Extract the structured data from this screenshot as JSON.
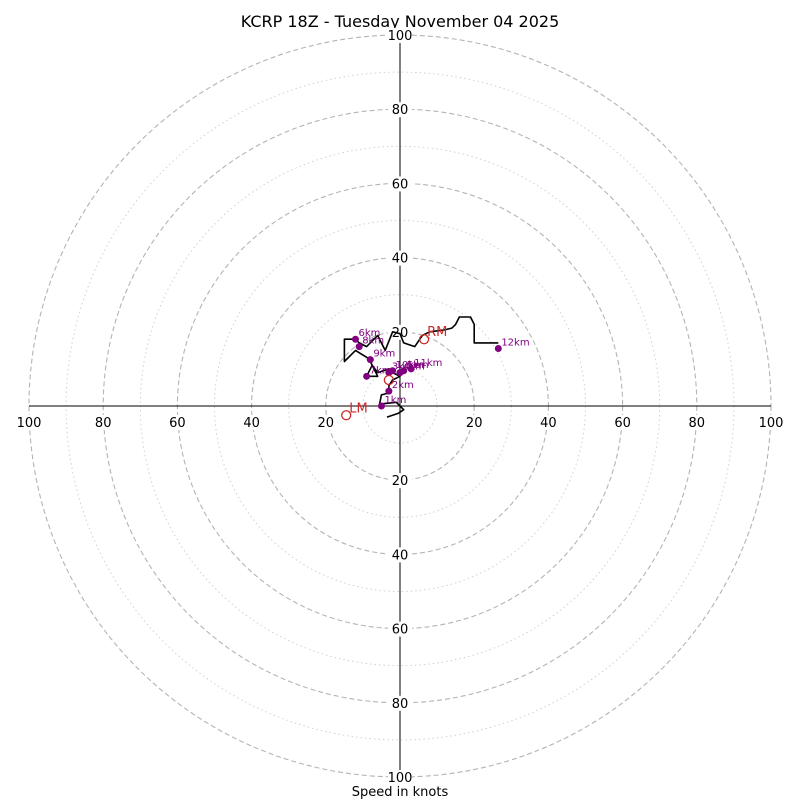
{
  "chart_data": {
    "type": "scatter",
    "subtype": "hodograph",
    "title": "KCRP 18Z - Tuesday November 04 2025",
    "xlabel": "Speed in knots",
    "range_max": 100,
    "major_rings": [
      20,
      40,
      60,
      80,
      100
    ],
    "minor_rings": [
      10,
      30,
      50,
      70,
      90
    ],
    "axis_ticks": [
      "100",
      "80",
      "60",
      "40",
      "20"
    ],
    "grid": true,
    "colors": {
      "trace": "#000000",
      "height_markers": "#800080",
      "storm_motion": "#cc2a2a",
      "grid": "#b4b4b4",
      "axis": "#000000"
    },
    "trace": [
      {
        "u": -3.5,
        "v": -3
      },
      {
        "u": -0.5,
        "v": -2
      },
      {
        "u": 1,
        "v": -1
      },
      {
        "u": -1,
        "v": 1
      },
      {
        "u": -5.5,
        "v": 0.5
      },
      {
        "u": -5,
        "v": 3
      },
      {
        "u": -3,
        "v": 3.5
      },
      {
        "u": -3,
        "v": 5.5
      },
      {
        "u": -2,
        "v": 7
      },
      {
        "u": 0,
        "v": 8
      },
      {
        "u": -2,
        "v": 9
      },
      {
        "u": -3,
        "v": 10
      },
      {
        "u": -6,
        "v": 9
      },
      {
        "u": -7.5,
        "v": 11
      },
      {
        "u": -9,
        "v": 8
      },
      {
        "u": -6,
        "v": 8
      },
      {
        "u": -8,
        "v": 12
      },
      {
        "u": -8,
        "v": 12.5
      },
      {
        "u": -12,
        "v": 15
      },
      {
        "u": -15,
        "v": 12
      },
      {
        "u": -15,
        "v": 18
      },
      {
        "u": -12,
        "v": 18
      },
      {
        "u": -11,
        "v": 17
      },
      {
        "u": -9,
        "v": 16
      },
      {
        "u": -7,
        "v": 18
      },
      {
        "u": -6,
        "v": 19
      },
      {
        "u": -4,
        "v": 15
      },
      {
        "u": -2,
        "v": 20
      },
      {
        "u": 0,
        "v": 19.5
      },
      {
        "u": 1,
        "v": 17
      },
      {
        "u": 4,
        "v": 16
      },
      {
        "u": 6,
        "v": 19
      },
      {
        "u": 8,
        "v": 20
      },
      {
        "u": 12,
        "v": 20.5
      },
      {
        "u": 14,
        "v": 21
      },
      {
        "u": 15,
        "v": 22
      },
      {
        "u": 16,
        "v": 24
      },
      {
        "u": 19,
        "v": 24
      },
      {
        "u": 20,
        "v": 22
      },
      {
        "u": 20,
        "v": 17
      },
      {
        "u": 22,
        "v": 17
      },
      {
        "u": 26.5,
        "v": 17
      }
    ],
    "height_points": [
      {
        "u": -5,
        "v": 0,
        "label": "1km"
      },
      {
        "u": -3,
        "v": 4,
        "label": "2km"
      },
      {
        "u": -3,
        "v": 9,
        "label": "3km"
      },
      {
        "u": 0,
        "v": 9,
        "label": "4km"
      },
      {
        "u": 1,
        "v": 9.5,
        "label": "5km"
      },
      {
        "u": -12,
        "v": 18,
        "label": "6km"
      },
      {
        "u": -9,
        "v": 8,
        "label": "7km"
      },
      {
        "u": -11,
        "v": 16,
        "label": "8km"
      },
      {
        "u": -8,
        "v": 12.5,
        "label": "9km"
      },
      {
        "u": -2,
        "v": 9.5,
        "label": "10km"
      },
      {
        "u": 3,
        "v": 10,
        "label": "11km"
      },
      {
        "u": 26.5,
        "v": 15.5,
        "label": "12km"
      }
    ],
    "storm_motion": [
      {
        "u": 6.5,
        "v": 18,
        "label": "RM"
      },
      {
        "u": -14.5,
        "v": -2.5,
        "label": "LM"
      },
      {
        "u": -3,
        "v": 7,
        "label": ""
      }
    ]
  }
}
